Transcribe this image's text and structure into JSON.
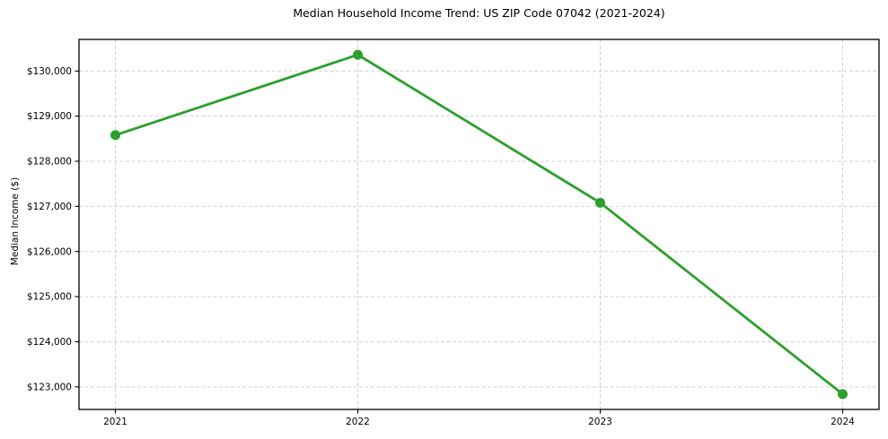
{
  "chart_data": {
    "type": "line",
    "title": "Median Household Income Trend: US ZIP Code 07042 (2021-2024)",
    "xlabel": "",
    "ylabel": "Median Income ($)",
    "x": [
      "2021",
      "2022",
      "2023",
      "2024"
    ],
    "series": [
      {
        "name": "Median Household Income",
        "values": [
          128580,
          130360,
          127080,
          122840
        ]
      }
    ],
    "ytick_values": [
      123000,
      124000,
      125000,
      126000,
      127000,
      128000,
      129000,
      130000
    ],
    "ytick_labels": [
      "$123,000",
      "$124,000",
      "$125,000",
      "$126,000",
      "$127,000",
      "$128,000",
      "$129,000",
      "$130,000"
    ],
    "ylim": [
      122500,
      130700
    ],
    "grid": "dashed",
    "legend_position": "none",
    "line_color": "#2ca02c",
    "marker": "circle",
    "background_color": "#ffffff"
  }
}
